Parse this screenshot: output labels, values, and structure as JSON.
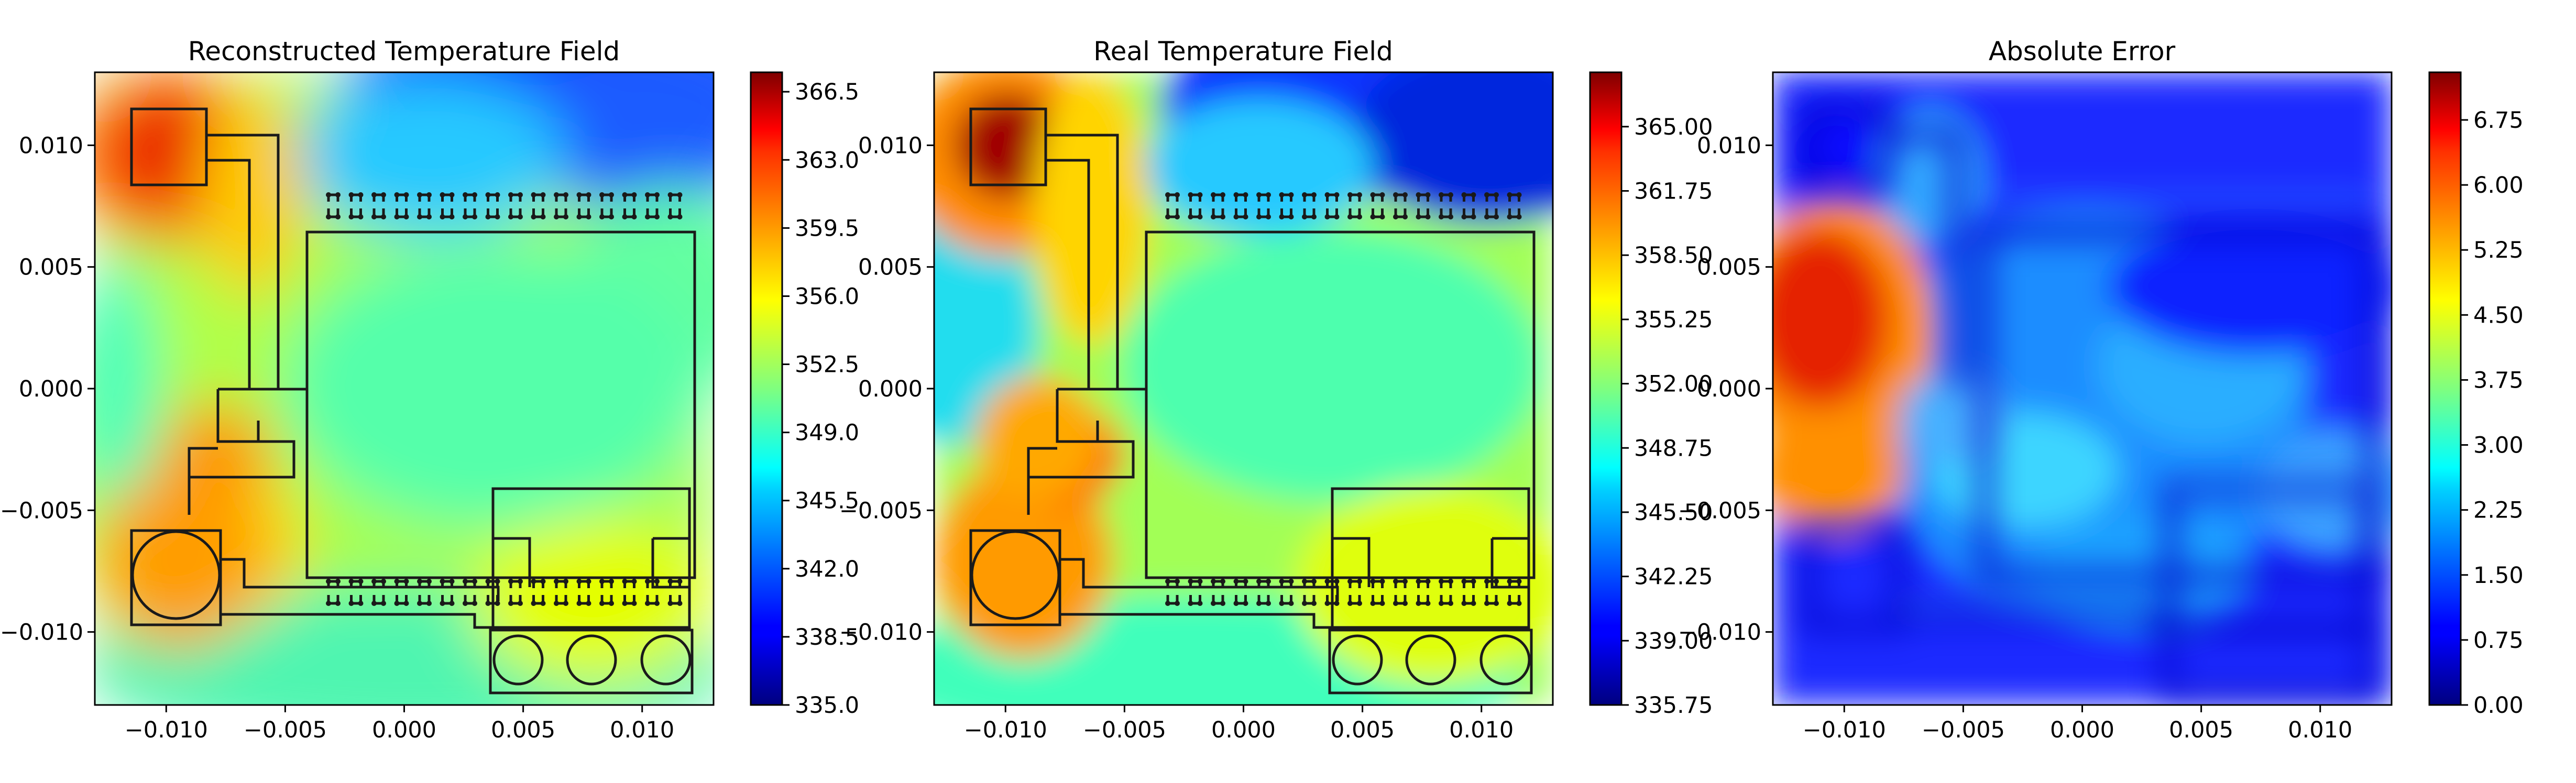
{
  "chart_data": [
    {
      "type": "heatmap",
      "title": "Reconstructed Temperature Field",
      "xlim": [
        -0.013,
        0.013
      ],
      "ylim": [
        -0.013,
        0.013
      ],
      "x_ticks": [
        "−0.010",
        "−0.005",
        "0.000",
        "0.005",
        "0.010"
      ],
      "x_tick_values": [
        -0.01,
        -0.005,
        0.0,
        0.005,
        0.01
      ],
      "y_ticks": [
        "0.010",
        "0.005",
        "0.000",
        "−0.005",
        "−0.010"
      ],
      "y_tick_values": [
        0.01,
        0.005,
        0.0,
        -0.005,
        -0.01
      ],
      "colormap": "jet",
      "colorbar": {
        "min": 335.0,
        "max": 367.5,
        "tick_labels": [
          "366.5",
          "363.0",
          "359.5",
          "356.0",
          "352.5",
          "349.0",
          "345.5",
          "342.0",
          "338.5",
          "335.0"
        ],
        "tick_values": [
          366.5,
          363.0,
          359.5,
          356.0,
          352.5,
          349.0,
          345.5,
          342.0,
          338.5,
          335.0
        ]
      }
    },
    {
      "type": "heatmap",
      "title": "Real Temperature Field",
      "xlim": [
        -0.013,
        0.013
      ],
      "ylim": [
        -0.013,
        0.013
      ],
      "x_ticks": [
        "−0.010",
        "−0.005",
        "0.000",
        "0.005",
        "0.010"
      ],
      "x_tick_values": [
        -0.01,
        -0.005,
        0.0,
        0.005,
        0.01
      ],
      "y_ticks": [
        "0.010",
        "0.005",
        "0.000",
        "−0.005",
        "−0.010"
      ],
      "y_tick_values": [
        0.01,
        0.005,
        0.0,
        -0.005,
        -0.01
      ],
      "colormap": "jet",
      "colorbar": {
        "min": 335.75,
        "max": 367.75,
        "tick_labels": [
          "365.00",
          "361.75",
          "358.50",
          "355.25",
          "352.00",
          "348.75",
          "345.50",
          "342.25",
          "339.00",
          "335.75"
        ],
        "tick_values": [
          365.0,
          361.75,
          358.5,
          355.25,
          352.0,
          348.75,
          345.5,
          342.25,
          339.0,
          335.75
        ]
      }
    },
    {
      "type": "heatmap",
      "title": "Absolute Error",
      "xlim": [
        -0.013,
        0.013
      ],
      "ylim": [
        -0.013,
        0.013
      ],
      "x_ticks": [
        "−0.010",
        "−0.005",
        "0.000",
        "0.005",
        "0.010"
      ],
      "x_tick_values": [
        -0.01,
        -0.005,
        0.0,
        0.005,
        0.01
      ],
      "y_ticks": [
        "0.010",
        "0.005",
        "0.000",
        "−0.005",
        "−0.010"
      ],
      "y_tick_values": [
        0.01,
        0.005,
        0.0,
        -0.005,
        -0.01
      ],
      "colormap": "jet",
      "colorbar": {
        "min": 0.0,
        "max": 7.3,
        "tick_labels": [
          "6.75",
          "6.00",
          "5.25",
          "4.50",
          "3.75",
          "3.00",
          "2.25",
          "1.50",
          "0.75",
          "0.00"
        ],
        "tick_values": [
          6.75,
          6.0,
          5.25,
          4.5,
          3.75,
          3.0,
          2.25,
          1.5,
          0.75,
          0.0
        ]
      }
    }
  ]
}
